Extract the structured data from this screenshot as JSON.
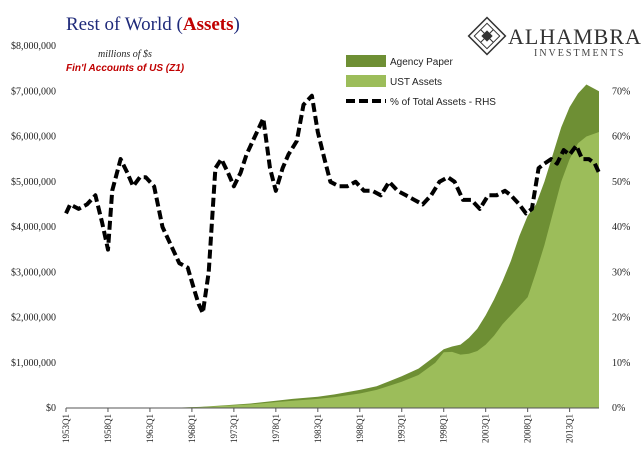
{
  "chart_data": {
    "type": "area",
    "title_prefix": "Rest of World (",
    "title_emph": "Assets",
    "title_suffix": ")",
    "note_units": "millions of $s",
    "note_source": "Fin'l Accounts of US (Z1)",
    "ylim": [
      0,
      8000000
    ],
    "y_ticks": [
      "$0",
      "$1,000,000",
      "$2,000,000",
      "$3,000,000",
      "$4,000,000",
      "$5,000,000",
      "$6,000,000",
      "$7,000,000",
      "$8,000,000"
    ],
    "y2lim": [
      0,
      80
    ],
    "y2_ticks": [
      "0%",
      "10%",
      "20%",
      "30%",
      "40%",
      "50%",
      "60%",
      "70%"
    ],
    "x_ticks": [
      "1953Q1",
      "1958Q1",
      "1963Q1",
      "1968Q1",
      "1973Q1",
      "1978Q1",
      "1983Q1",
      "1988Q1",
      "1993Q1",
      "1998Q1",
      "2003Q1",
      "2008Q1",
      "2013Q1"
    ],
    "xlim": [
      1953.0,
      2016.5
    ],
    "legend": [
      {
        "name": "Agency Paper",
        "color": "#6e8f34",
        "kind": "area"
      },
      {
        "name": "UST Assets",
        "color": "#9cbd5a",
        "kind": "area"
      },
      {
        "name": "% of Total Assets - RHS",
        "color": "#000000",
        "kind": "dash"
      }
    ],
    "series": [
      {
        "name": "UST Assets",
        "x": [
          1953,
          1960,
          1965,
          1969,
          1972,
          1975,
          1978,
          1980,
          1983,
          1985,
          1988,
          1990,
          1993,
          1995,
          1997,
          1998,
          1999,
          2000,
          2001,
          2002,
          2003,
          2004,
          2005,
          2006,
          2007,
          2008,
          2009,
          2010,
          2011,
          2012,
          2013,
          2014,
          2015,
          2016.5
        ],
        "values": [
          0,
          0,
          0,
          20000,
          50000,
          80000,
          130000,
          160000,
          200000,
          240000,
          320000,
          400000,
          580000,
          730000,
          1000000,
          1230000,
          1240000,
          1180000,
          1200000,
          1260000,
          1400000,
          1600000,
          1850000,
          2050000,
          2250000,
          2450000,
          3000000,
          3600000,
          4300000,
          5000000,
          5500000,
          5850000,
          6000000,
          6100000
        ]
      },
      {
        "name": "Agency Paper",
        "x": [
          1953,
          1960,
          1965,
          1969,
          1972,
          1975,
          1978,
          1980,
          1983,
          1985,
          1988,
          1990,
          1993,
          1995,
          1997,
          1998,
          1999,
          2000,
          2001,
          2002,
          2003,
          2004,
          2005,
          2006,
          2007,
          2008,
          2009,
          2010,
          2011,
          2012,
          2013,
          2014,
          2015,
          2016.5
        ],
        "values": [
          0,
          0,
          0,
          25000,
          60000,
          100000,
          160000,
          200000,
          250000,
          300000,
          400000,
          480000,
          700000,
          870000,
          1150000,
          1300000,
          1360000,
          1400000,
          1550000,
          1750000,
          2050000,
          2400000,
          2800000,
          3250000,
          3800000,
          4250000,
          4500000,
          5000000,
          5600000,
          6200000,
          6650000,
          6950000,
          7150000,
          7000000
        ]
      },
      {
        "name": "% of Total Assets - RHS",
        "axis": "right",
        "x": [
          1953,
          1953.5,
          1954.5,
          1955.5,
          1956.5,
          1957.3,
          1958,
          1958.5,
          1959.5,
          1960.3,
          1961,
          1961.8,
          1962.5,
          1963.5,
          1964.5,
          1965.5,
          1966.5,
          1967.5,
          1968.3,
          1968.8,
          1969.3,
          1970,
          1970.8,
          1971.5,
          1972.3,
          1973,
          1973.8,
          1974.5,
          1975.5,
          1976.5,
          1977.3,
          1978,
          1978.8,
          1979.5,
          1980.5,
          1981.3,
          1982.3,
          1983,
          1983.8,
          1984.5,
          1985.5,
          1986.5,
          1987.5,
          1988.5,
          1989.5,
          1990.5,
          1991.5,
          1992.5,
          1993.5,
          1994.5,
          1995.5,
          1996.5,
          1997.5,
          1998.5,
          1999.3,
          2000.3,
          2001.3,
          2002.3,
          2003.3,
          2004.3,
          2005.3,
          2006,
          2007,
          2007.8,
          2008.5,
          2009.3,
          2010,
          2010.8,
          2011.5,
          2012.3,
          2013,
          2013.8,
          2014.5,
          2015.3,
          2016,
          2016.5
        ],
        "values": [
          43,
          45,
          44,
          45,
          47,
          41,
          35,
          48,
          55,
          52,
          49,
          51,
          51,
          49,
          40,
          36,
          32,
          31,
          26,
          23,
          21,
          30,
          53,
          55,
          52,
          49,
          52,
          56,
          60,
          64,
          53,
          48,
          53,
          56,
          59,
          67,
          69,
          61,
          55,
          50,
          49,
          49,
          50,
          48,
          48,
          47,
          50,
          48,
          47,
          46,
          45,
          47,
          50,
          51,
          50,
          46,
          46,
          44,
          47,
          47,
          48,
          47,
          45,
          43,
          44,
          53,
          54,
          55,
          54,
          57,
          56,
          58,
          55,
          55,
          54,
          52
        ]
      }
    ],
    "grid": false,
    "legend_position": "top-right"
  },
  "branding": {
    "name": "ALHAMBRA",
    "sub": "INVESTMENTS"
  }
}
